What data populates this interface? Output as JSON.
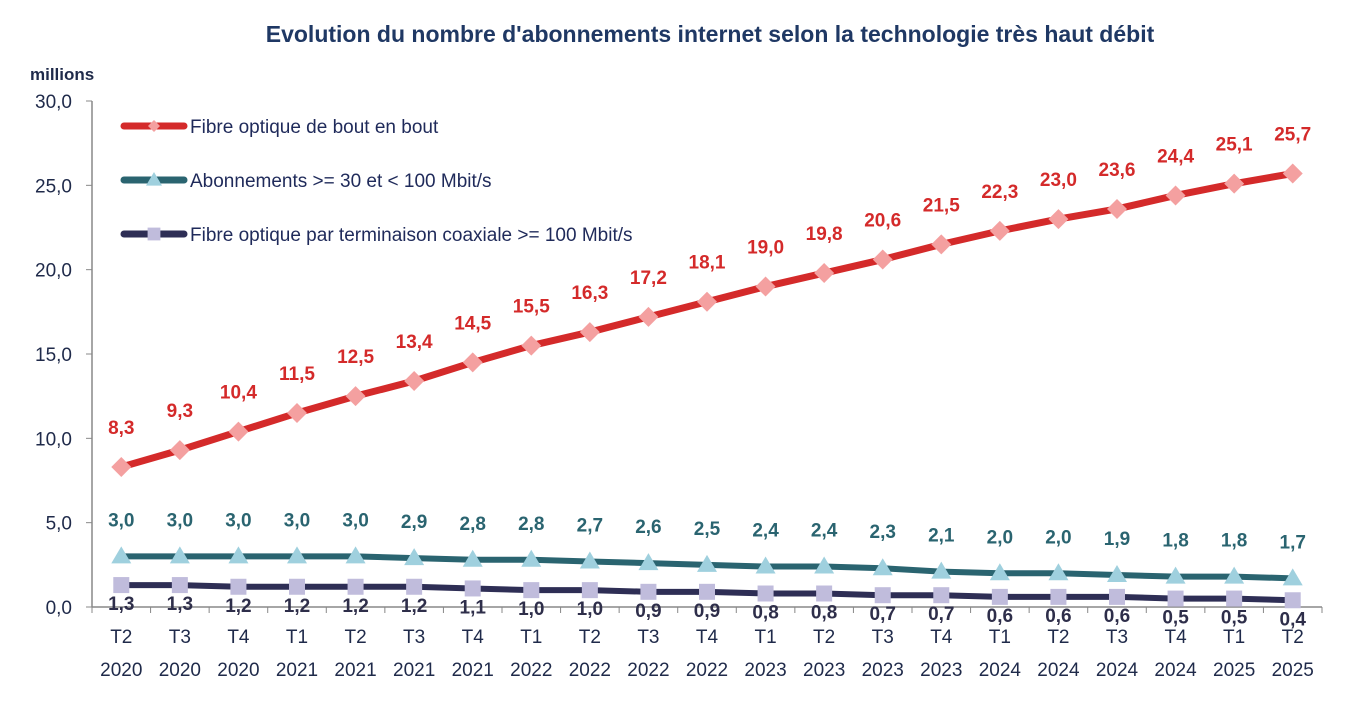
{
  "chart_data": {
    "type": "line",
    "title": "Evolution du nombre d'abonnements internet selon la technologie très haut débit",
    "ylabel": "millions",
    "ylim": [
      0,
      30
    ],
    "yticks": [
      "0,0",
      "5,0",
      "10,0",
      "15,0",
      "20,0",
      "25,0",
      "30,0"
    ],
    "legend_position": "top-left",
    "grid": false,
    "categories": [
      [
        "T2",
        "2020"
      ],
      [
        "T3",
        "2020"
      ],
      [
        "T4",
        "2020"
      ],
      [
        "T1",
        "2021"
      ],
      [
        "T2",
        "2021"
      ],
      [
        "T3",
        "2021"
      ],
      [
        "T4",
        "2021"
      ],
      [
        "T1",
        "2022"
      ],
      [
        "T2",
        "2022"
      ],
      [
        "T3",
        "2022"
      ],
      [
        "T4",
        "2022"
      ],
      [
        "T1",
        "2023"
      ],
      [
        "T2",
        "2023"
      ],
      [
        "T3",
        "2023"
      ],
      [
        "T4",
        "2023"
      ],
      [
        "T1",
        "2024"
      ],
      [
        "T2",
        "2024"
      ],
      [
        "T3",
        "2024"
      ],
      [
        "T4",
        "2024"
      ],
      [
        "T1",
        "2025"
      ],
      [
        "T2",
        "2025"
      ]
    ],
    "series": [
      {
        "name": "Fibre optique de bout en bout",
        "color": "#d42a2a",
        "marker": "diamond",
        "marker_color": "#f4a0a0",
        "label_color": "#d42a2a",
        "values": [
          8.3,
          9.3,
          10.4,
          11.5,
          12.5,
          13.4,
          14.5,
          15.5,
          16.3,
          17.2,
          18.1,
          19.0,
          19.8,
          20.6,
          21.5,
          22.3,
          23.0,
          23.6,
          24.4,
          25.1,
          25.7
        ]
      },
      {
        "name": "Abonnements >= 30 et < 100 Mbit/s",
        "color": "#2a6470",
        "marker": "triangle",
        "marker_color": "#9fd0de",
        "label_color": "#2a6470",
        "values": [
          3.0,
          3.0,
          3.0,
          3.0,
          3.0,
          2.9,
          2.8,
          2.8,
          2.7,
          2.6,
          2.5,
          2.4,
          2.4,
          2.3,
          2.1,
          2.0,
          2.0,
          1.9,
          1.8,
          1.8,
          1.7
        ]
      },
      {
        "name": "Fibre optique par terminaison coaxiale >= 100 Mbit/s",
        "color": "#2e2e55",
        "marker": "square",
        "marker_color": "#c0bcdc",
        "label_color": "#2e2e4a",
        "values": [
          1.3,
          1.3,
          1.2,
          1.2,
          1.2,
          1.2,
          1.1,
          1.0,
          1.0,
          0.9,
          0.9,
          0.8,
          0.8,
          0.7,
          0.7,
          0.6,
          0.6,
          0.6,
          0.5,
          0.5,
          0.4
        ]
      }
    ]
  }
}
